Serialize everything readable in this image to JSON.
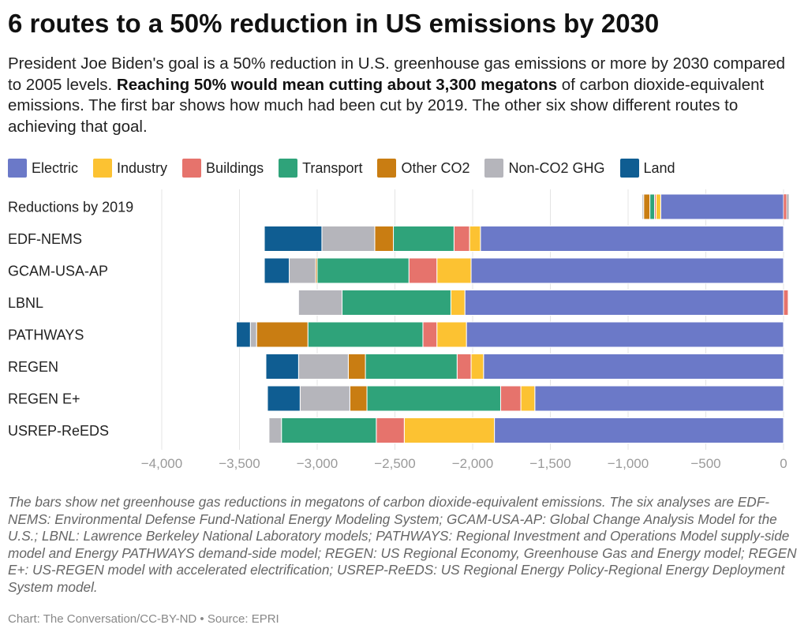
{
  "title": "6 routes to a 50% reduction in US emissions by 2030",
  "subtitle": {
    "part1": "President Joe Biden's goal is a 50% reduction in U.S. greenhouse gas emissions or more by 2030 compared to 2005 levels. ",
    "bold": "Reaching 50% would mean cutting about 3,300 megatons",
    "part2": " of carbon dioxide-equivalent emissions. The first bar shows how much had been cut by 2019. The other six show different routes to achieving that goal."
  },
  "note": "The bars show net greenhouse gas reductions in megatons of carbon dioxide-equivalent emissions. The six analyses are EDF-NEMS: Environmental Defense Fund-National Energy Modeling System; GCAM-USA-AP: Global Change Analysis Model for the U.S.; LBNL: Lawrence Berkeley National Laboratory models; PATHWAYS: Regional Investment and Operations Model supply-side model and Energy PATHWAYS demand-side model; REGEN: US Regional Economy, Greenhouse Gas and Energy model; REGEN E+: US-REGEN model with accelerated electrification; USREP-ReEDS: US Regional Energy Policy-Regional Energy Deployment System model.",
  "credit": "Chart: The Conversation/CC-BY-ND • Source: EPRI",
  "chart_data": {
    "type": "bar",
    "orientation": "horizontal",
    "stacked": true,
    "categories": [
      "Reductions by 2019",
      "EDF-NEMS",
      "GCAM-USA-AP",
      "LBNL",
      "PATHWAYS",
      "REGEN",
      "REGEN E+",
      "USREP-ReEDS"
    ],
    "series": [
      {
        "name": "Electric",
        "color": "#6b79c8",
        "values": [
          -790,
          -1950,
          -2010,
          -2050,
          -2040,
          -1930,
          -1600,
          -1860
        ]
      },
      {
        "name": "Industry",
        "color": "#fcc232",
        "values": [
          -30,
          -70,
          -220,
          -90,
          -190,
          -80,
          -90,
          -580
        ]
      },
      {
        "name": "Buildings",
        "color": "#e6736c",
        "values": [
          -10,
          -100,
          -180,
          30,
          -90,
          -90,
          -130,
          -180
        ]
      },
      {
        "name": "Transport",
        "color": "#2fa37a",
        "values": [
          -30,
          -390,
          -590,
          -700,
          -740,
          -590,
          -860,
          -610
        ]
      },
      {
        "name": "Other CO2",
        "color": "#c97d12",
        "values": [
          -40,
          -120,
          -10,
          0,
          -330,
          -110,
          -110,
          0
        ]
      },
      {
        "name": "Non-CO2 GHG",
        "color": "#b5b5bb",
        "values": [
          -10,
          -340,
          -170,
          -280,
          -40,
          -320,
          -320,
          -80
        ]
      },
      {
        "name": "Land",
        "color": "#0f5d92",
        "values": [
          0,
          -370,
          -160,
          0,
          -90,
          -210,
          -210,
          0
        ]
      }
    ],
    "reduction_2019_right_sliver": [
      {
        "name": "Buildings",
        "value": 20
      },
      {
        "name": "Non-CO2 GHG",
        "value": 15
      }
    ],
    "xlim": [
      -4000,
      0
    ],
    "xticks": [
      -4000,
      -3500,
      -3000,
      -2500,
      -2000,
      -1500,
      -1000,
      -500,
      0
    ],
    "xtick_labels": [
      "−4,000",
      "−3,500",
      "−3,000",
      "−2,500",
      "−2,000",
      "−1,500",
      "−1,000",
      "−500",
      "0"
    ],
    "grid": true,
    "legend_position": "top-left"
  }
}
